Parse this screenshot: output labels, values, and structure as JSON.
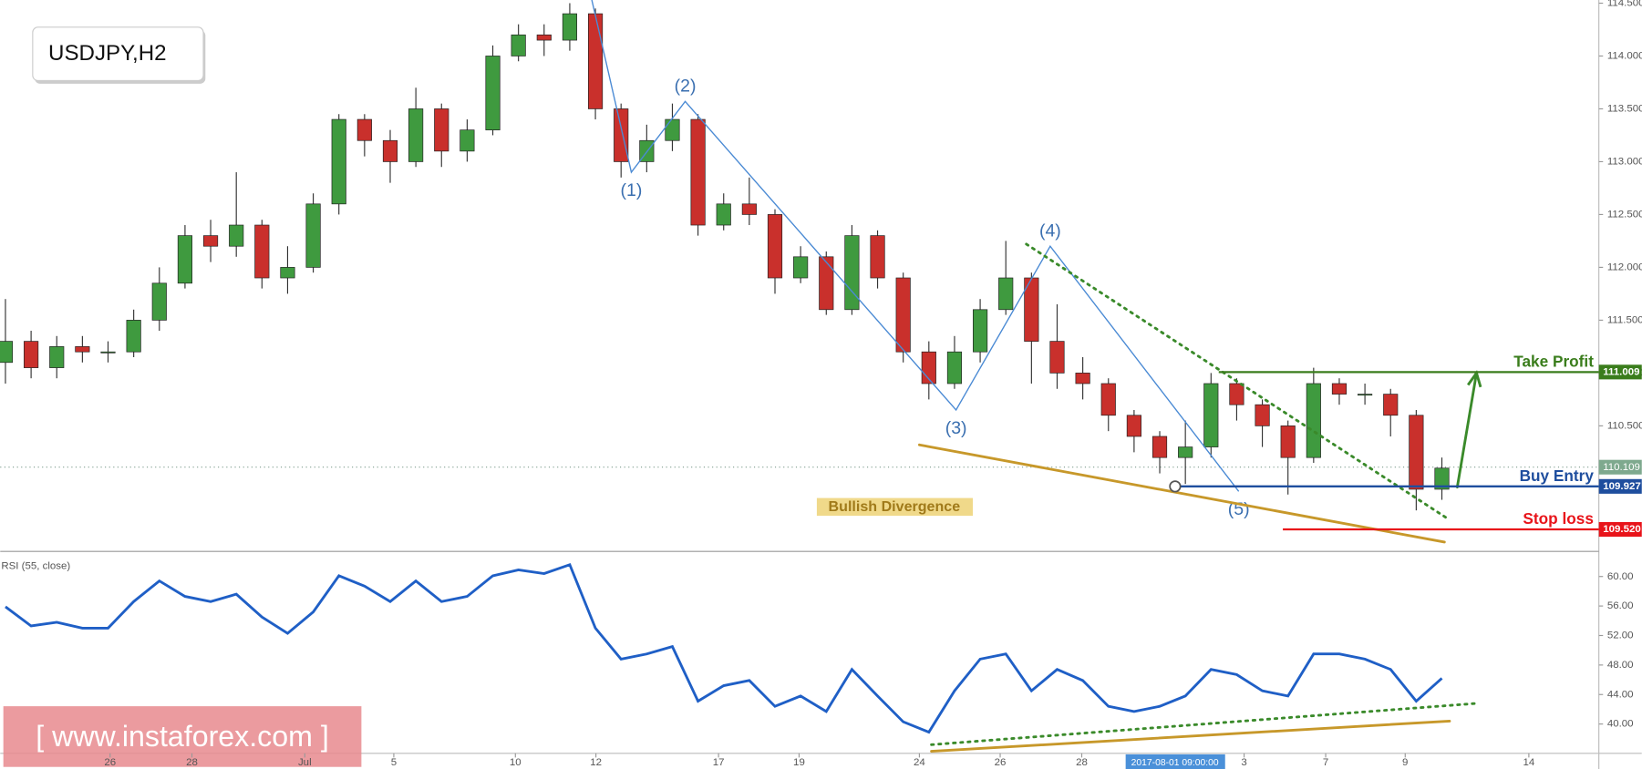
{
  "chart_data": [
    {
      "type": "candlestick",
      "title": "USDJPY,H2",
      "open": [
        111.1,
        111.3,
        111.05,
        111.25,
        111.2,
        111.2,
        111.5,
        111.85,
        112.3,
        112.2,
        112.4,
        111.9,
        112.0,
        112.6,
        113.4,
        113.2,
        113.0,
        113.5,
        113.1,
        113.3,
        114.0,
        114.2,
        114.15,
        114.4,
        113.5,
        113.0,
        113.2,
        113.4,
        112.4,
        112.6,
        112.5,
        111.9,
        112.1,
        111.6,
        112.3,
        111.9,
        111.2,
        110.9,
        111.2,
        111.6,
        111.9,
        111.3,
        111.0,
        110.9,
        110.6,
        110.4,
        110.2,
        110.3,
        110.9,
        110.7,
        110.5,
        110.2,
        110.9,
        110.8,
        110.8,
        110.6,
        109.9
      ],
      "high": [
        111.7,
        111.4,
        111.35,
        111.35,
        111.3,
        111.6,
        112.0,
        112.4,
        112.45,
        112.9,
        112.45,
        112.2,
        112.7,
        113.45,
        113.45,
        113.3,
        113.7,
        113.55,
        113.4,
        114.1,
        114.3,
        114.3,
        114.5,
        114.45,
        113.55,
        113.35,
        113.55,
        113.45,
        112.7,
        112.85,
        112.55,
        112.2,
        112.15,
        112.4,
        112.35,
        111.95,
        111.3,
        111.35,
        111.7,
        112.25,
        111.95,
        111.65,
        111.15,
        110.95,
        110.65,
        110.45,
        110.55,
        111.0,
        110.95,
        110.75,
        110.55,
        111.05,
        110.95,
        110.9,
        110.85,
        110.65,
        110.2
      ],
      "low": [
        110.9,
        110.95,
        110.95,
        111.1,
        111.1,
        111.15,
        111.4,
        111.8,
        112.05,
        112.1,
        111.8,
        111.75,
        111.95,
        112.5,
        113.05,
        112.8,
        112.95,
        112.95,
        113.0,
        113.25,
        113.95,
        114.0,
        114.05,
        113.4,
        112.85,
        112.9,
        113.1,
        112.3,
        112.35,
        112.4,
        111.75,
        111.85,
        111.55,
        111.55,
        111.8,
        111.1,
        110.75,
        110.85,
        111.1,
        111.55,
        110.9,
        110.85,
        110.75,
        110.45,
        110.25,
        110.05,
        109.95,
        110.2,
        110.55,
        110.3,
        109.85,
        110.15,
        110.7,
        110.7,
        110.4,
        109.7,
        109.8
      ],
      "close": [
        111.3,
        111.05,
        111.25,
        111.2,
        111.2,
        111.5,
        111.85,
        112.3,
        112.2,
        112.4,
        111.9,
        112.0,
        112.6,
        113.4,
        113.2,
        113.0,
        113.5,
        113.1,
        113.3,
        114.0,
        114.2,
        114.15,
        114.4,
        113.5,
        113.0,
        113.2,
        113.4,
        112.4,
        112.6,
        112.5,
        111.9,
        112.1,
        111.6,
        112.3,
        111.9,
        111.2,
        110.9,
        111.2,
        111.6,
        111.9,
        111.3,
        111.0,
        110.9,
        110.6,
        110.4,
        110.2,
        110.3,
        110.9,
        110.7,
        110.5,
        110.2,
        110.9,
        110.8,
        110.8,
        110.6,
        109.9,
        110.1
      ],
      "up_color": "#3f9a3f",
      "down_color": "#c9302c",
      "xlim": [
        -0.204,
        62.12
      ],
      "ylim": [
        109.312,
        114.53
      ],
      "yticks": [
        {
          "value": 110.5,
          "label": "110.500"
        },
        {
          "value": 111,
          "label": "111.000"
        },
        {
          "value": 111.5,
          "label": "111.500"
        },
        {
          "value": 112,
          "label": "112.000"
        },
        {
          "value": 112.5,
          "label": "112.500"
        },
        {
          "value": 113,
          "label": "113.000"
        },
        {
          "value": 113.5,
          "label": "113.500"
        },
        {
          "value": 114,
          "label": "114.000"
        },
        {
          "value": 114.5,
          "label": "114.500"
        }
      ],
      "current_price": 110.109,
      "levels": [
        {
          "label": "Take Profit",
          "price": 111.009,
          "color": "#3a7d1c",
          "x_start": 47.3
        },
        {
          "label": "Buy Entry",
          "price": 109.927,
          "color": "#1f4e9e",
          "x_start": 45.6
        },
        {
          "label": "Stop loss",
          "price": {
            "value": 109.52,
            "label": "109.520"
          },
          "color": "#e8141a",
          "x_start": 49.8
        }
      ],
      "waves": [
        {
          "label": null,
          "x": 22.86,
          "y": 114.53
        },
        {
          "label": "(1)",
          "x": 24.4,
          "y": 112.9
        },
        {
          "label": "(2)",
          "x": 26.5,
          "y": 113.57
        },
        {
          "label": "(3)",
          "x": 37.06,
          "y": 110.65
        },
        {
          "label": "(4)",
          "x": 40.73,
          "y": 112.2
        },
        {
          "label": "(5)",
          "x": 48.08,
          "y": 109.88
        }
      ],
      "trendlines": [
        {
          "x": [
            39.8,
            56.3
          ],
          "y": [
            112.22,
            109.61
          ],
          "color": "#3a8a2a",
          "dashed": true
        },
        {
          "x": [
            35.63,
            56.1
          ],
          "y": [
            110.32,
            109.4
          ],
          "color": "#c7982a",
          "dashed": false
        }
      ],
      "arrows": [
        {
          "x": [
            56.6,
            57.35
          ],
          "y": [
            109.92,
            111.0
          ],
          "color": "#3a8a2a"
        }
      ],
      "annotation": "Bullish Divergence"
    },
    {
      "type": "line",
      "label": "RSI (55, close)",
      "values": [
        55.9,
        53.3,
        53.8,
        53,
        53,
        56.6,
        59.4,
        57.3,
        56.6,
        57.6,
        54.5,
        52.3,
        55.2,
        60.1,
        58.7,
        56.6,
        59.4,
        56.6,
        57.3,
        60.1,
        60.9,
        60.4,
        61.6,
        53,
        48.8,
        49.5,
        50.5,
        43.1,
        45.2,
        45.9,
        42.4,
        43.8,
        41.7,
        47.4,
        43.8,
        40.3,
        38.9,
        44.5,
        48.8,
        49.5,
        44.5,
        47.4,
        45.9,
        42.4,
        41.7,
        42.4,
        43.8,
        47.4,
        46.7,
        44.5,
        43.8,
        49.5,
        49.5,
        48.8,
        47.4,
        43.1,
        46.2
      ],
      "color": "#1f5fc6",
      "xlim": [
        -0.204,
        62.12
      ],
      "ylim": [
        36.03,
        62.98
      ],
      "yticks": [
        {
          "value": 40,
          "label": "40.00"
        },
        {
          "value": 44,
          "label": "44.00"
        },
        {
          "value": 48,
          "label": "48.00"
        },
        {
          "value": 52,
          "label": "52.00"
        },
        {
          "value": 56,
          "label": "56.00"
        },
        {
          "value": 60,
          "label": "60.00"
        }
      ],
      "xticks": [
        {
          "value": 4.08,
          "label": "26"
        },
        {
          "value": 7.27,
          "label": "28"
        },
        {
          "value": 11.67,
          "label": "Jul"
        },
        {
          "value": 15.14,
          "label": "5"
        },
        {
          "value": 19.88,
          "label": "10"
        },
        {
          "value": 23.02,
          "label": "12"
        },
        {
          "value": 27.8,
          "label": "17"
        },
        {
          "value": 30.94,
          "label": "19"
        },
        {
          "value": 35.63,
          "label": "24"
        },
        {
          "value": 38.78,
          "label": "26"
        },
        {
          "value": 41.96,
          "label": "28"
        },
        {
          "value": 48.29,
          "label": "3"
        },
        {
          "value": 51.47,
          "label": "7"
        },
        {
          "value": 54.57,
          "label": "9"
        },
        {
          "value": 59.39,
          "label": "14"
        }
      ],
      "cursor_label": "2017-08-01 09:00:00",
      "trendlines": [
        {
          "x": [
            36.1,
            57.35
          ],
          "y": [
            37.2,
            42.8
          ],
          "color": "#3a8a2a",
          "dashed": true
        },
        {
          "x": [
            36.1,
            56.3
          ],
          "y": [
            36.3,
            40.4
          ],
          "color": "#c7982a",
          "dashed": false
        }
      ]
    }
  ],
  "watermark": "[ www.instaforex.com ]"
}
